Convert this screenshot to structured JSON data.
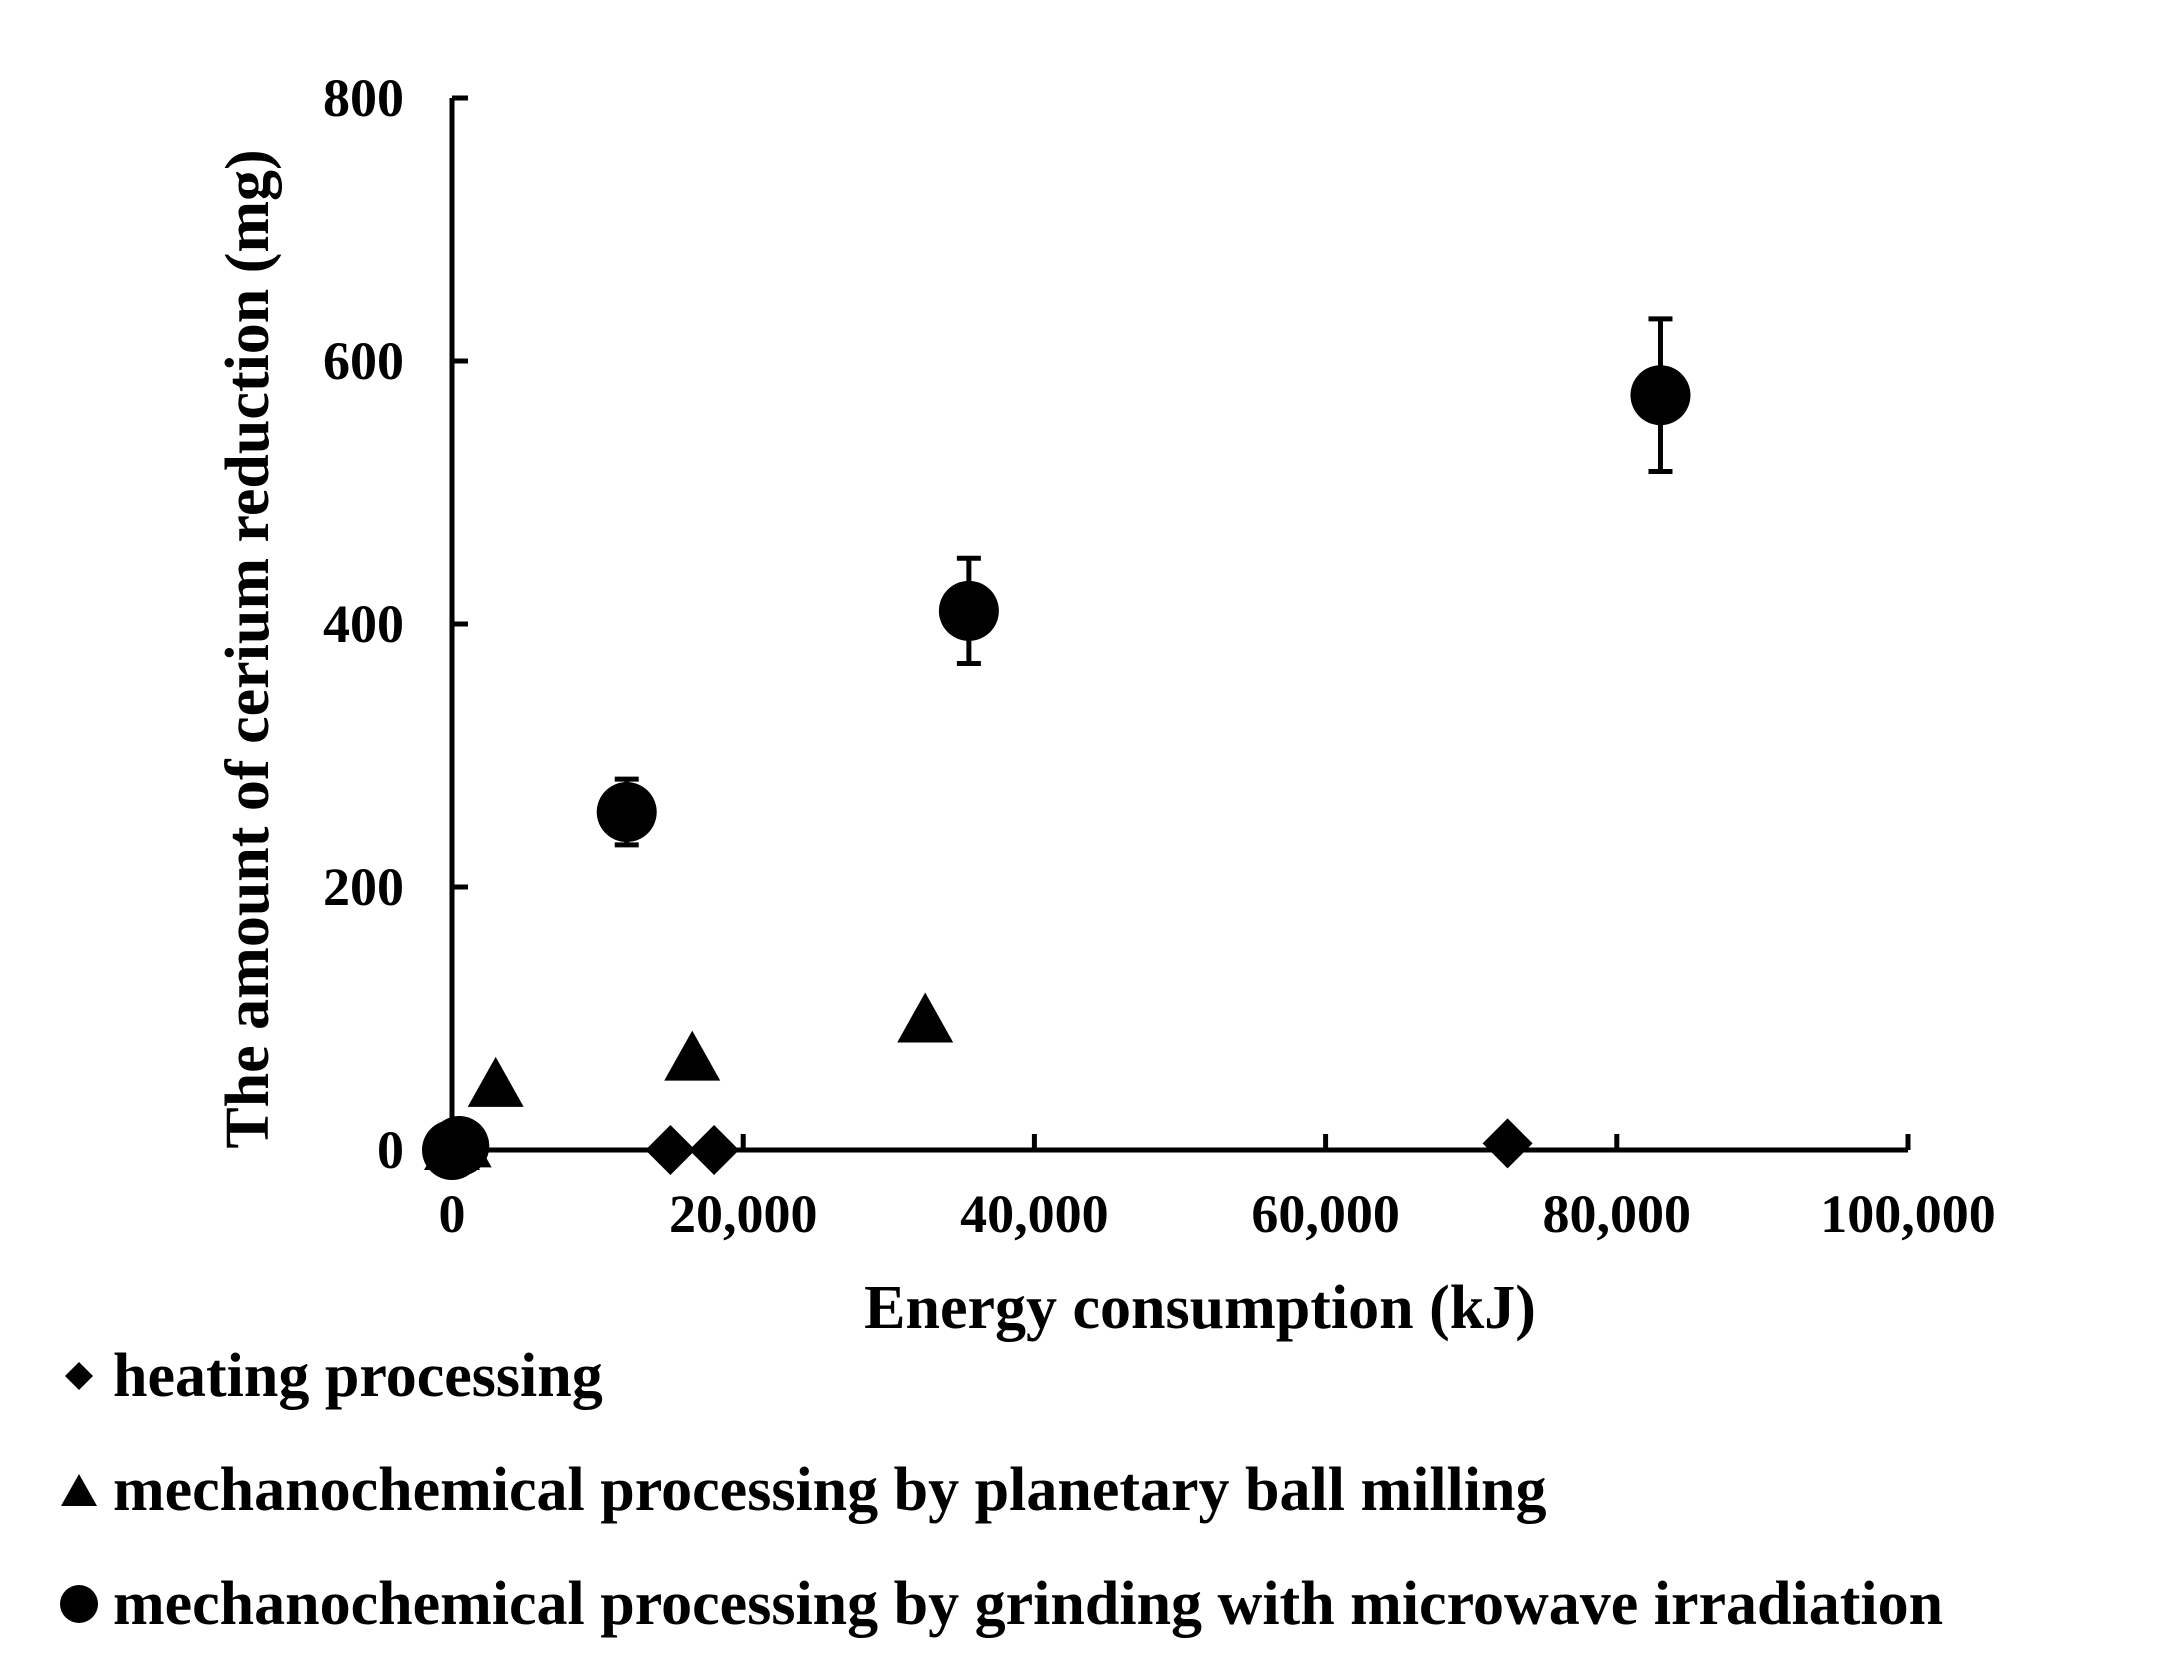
{
  "chart_data": {
    "type": "scatter",
    "title": "",
    "xlabel": "Energy consumption (kJ)",
    "ylabel": "The amount of cerium reduction (mg)",
    "xlim": [
      0,
      100000
    ],
    "ylim": [
      0,
      800
    ],
    "x_ticks": [
      0,
      20000,
      40000,
      60000,
      80000,
      100000
    ],
    "x_tick_labels": [
      "0",
      "20,000",
      "40,000",
      "60,000",
      "80,000",
      "100,000"
    ],
    "y_ticks": [
      0,
      200,
      400,
      600,
      800
    ],
    "y_tick_labels": [
      "0",
      "200",
      "400",
      "600",
      "800"
    ],
    "grid": false,
    "legend_position": "bottom",
    "series": [
      {
        "name": "heating processing",
        "marker": "diamond",
        "color": "#000000",
        "points": [
          {
            "x": 0,
            "y": 0
          },
          {
            "x": 15000,
            "y": 0
          },
          {
            "x": 18000,
            "y": 0
          },
          {
            "x": 72500,
            "y": 5
          }
        ]
      },
      {
        "name": "mechanochemical processing by planetary ball milling",
        "marker": "triangle",
        "color": "#000000",
        "points": [
          {
            "x": 0,
            "y": 0
          },
          {
            "x": 800,
            "y": 2
          },
          {
            "x": 3000,
            "y": 48
          },
          {
            "x": 16500,
            "y": 68
          },
          {
            "x": 32500,
            "y": 97
          }
        ]
      },
      {
        "name": "mechanochemical processing by grinding with microwave irradiation",
        "marker": "circle",
        "color": "#000000",
        "points": [
          {
            "x": 0,
            "y": 0,
            "err": 0
          },
          {
            "x": 500,
            "y": 3,
            "err": 0
          },
          {
            "x": 12000,
            "y": 257,
            "err": 25
          },
          {
            "x": 35500,
            "y": 410,
            "err": 40
          },
          {
            "x": 83000,
            "y": 574,
            "err": 58
          }
        ]
      }
    ]
  }
}
